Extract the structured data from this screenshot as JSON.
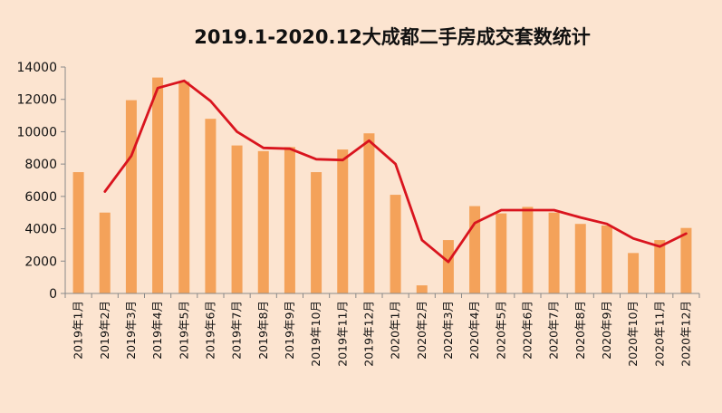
{
  "chart_data": {
    "type": "bar",
    "title": "2019.1-2020.12大成都二手房成交套数统计",
    "xlabel": "",
    "ylabel": "",
    "ylim": [
      0,
      14000
    ],
    "yticks": [
      0,
      2000,
      4000,
      6000,
      8000,
      10000,
      12000,
      14000
    ],
    "grid": false,
    "legend": "none",
    "categories": [
      "2019年1月",
      "2019年2月",
      "2019年3月",
      "2019年4月",
      "2019年5月",
      "2019年6月",
      "2019年7月",
      "2019年8月",
      "2019年9月",
      "2019年10月",
      "2019年11月",
      "2019年12月",
      "2020年1月",
      "2020年2月",
      "2020年3月",
      "2020年4月",
      "2020年5月",
      "2020年6月",
      "2020年7月",
      "2020年8月",
      "2020年9月",
      "2020年10月",
      "2020年11月",
      "2020年12月"
    ],
    "series": [
      {
        "type": "bar",
        "color": "#f4a25a",
        "values": [
          7500,
          5000,
          11950,
          13350,
          13100,
          10800,
          9150,
          8800,
          9050,
          7500,
          8900,
          9900,
          6100,
          500,
          3300,
          5400,
          4950,
          5350,
          5000,
          4300,
          4200,
          2500,
          3300,
          4050
        ]
      },
      {
        "type": "line",
        "color": "#d9141e",
        "values": [
          null,
          6300,
          8500,
          12700,
          13150,
          11900,
          10000,
          9000,
          8950,
          8300,
          8250,
          9450,
          8000,
          3300,
          1950,
          4350,
          5150,
          5150,
          5150,
          4700,
          4300,
          3400,
          2900,
          3700
        ]
      }
    ]
  }
}
